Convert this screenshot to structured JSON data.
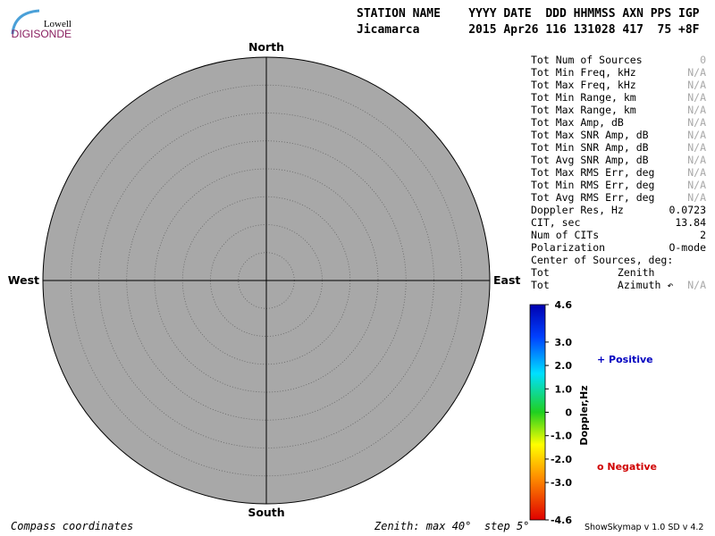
{
  "logo": {
    "top": "Lowell",
    "bottom": "DIGISONDE"
  },
  "header": {
    "labels": "STATION NAME    YYYY DATE  DDD HHMMSS AXN PPS IGP",
    "values": "Jicamarca       2015 Apr26 116 131028 417  75 +8F"
  },
  "compass": {
    "north": "North",
    "south": "South",
    "east": "East",
    "west": "West"
  },
  "stats": [
    {
      "label": "Tot Num of Sources",
      "value": 0
    },
    {
      "label": "Tot Min Freq, kHz",
      "value": "N/A"
    },
    {
      "label": "Tot Max Freq, kHz",
      "value": "N/A"
    },
    {
      "label": "Tot Min Range, km",
      "value": "N/A"
    },
    {
      "label": "Tot Max Range, km",
      "value": "N/A"
    },
    {
      "label": "Tot Max Amp, dB",
      "value": "N/A"
    },
    {
      "label": "Tot Max SNR Amp, dB",
      "value": "N/A"
    },
    {
      "label": "Tot Min SNR Amp, dB",
      "value": "N/A"
    },
    {
      "label": "Tot Avg SNR Amp, dB",
      "value": "N/A"
    },
    {
      "label": "Tot Max RMS Err, deg",
      "value": "N/A"
    },
    {
      "label": "Tot Min RMS Err, deg",
      "value": "N/A"
    },
    {
      "label": "Tot Avg RMS Err, deg",
      "value": "N/A"
    },
    {
      "label": "Doppler Res, Hz",
      "value": 0.0723
    },
    {
      "label": "CIT, sec",
      "value": 13.84
    },
    {
      "label": "Num of CITs",
      "value": 2
    },
    {
      "label": "Polarization",
      "value": "O-mode"
    },
    {
      "label": "Center of Sources, deg:"
    },
    {
      "label": "Tot           Zenith"
    },
    {
      "label": "Tot           Azimuth ↶",
      "value": "N/A"
    }
  ],
  "colorbar": {
    "title": "Doppler,Hz",
    "lim": [
      -4.6,
      4.6
    ],
    "ticks": [
      4.6,
      {
        "value": 3,
        "label": "3.0"
      },
      {
        "value": 2,
        "label": "2.0"
      },
      {
        "value": 1,
        "label": "1.0"
      },
      0,
      {
        "value": -1,
        "label": "-1.0"
      },
      {
        "value": -2,
        "label": "-2.0"
      },
      {
        "value": -3,
        "label": "-3.0"
      },
      -4.6
    ]
  },
  "legend": {
    "positive": "+ Positive",
    "negative": "o Negative"
  },
  "footer": {
    "left": "Compass coordinates",
    "zenith": "Zenith: max 40°  step 5°",
    "version": "ShowSkymap v 1.0  SD v 4.2"
  }
}
